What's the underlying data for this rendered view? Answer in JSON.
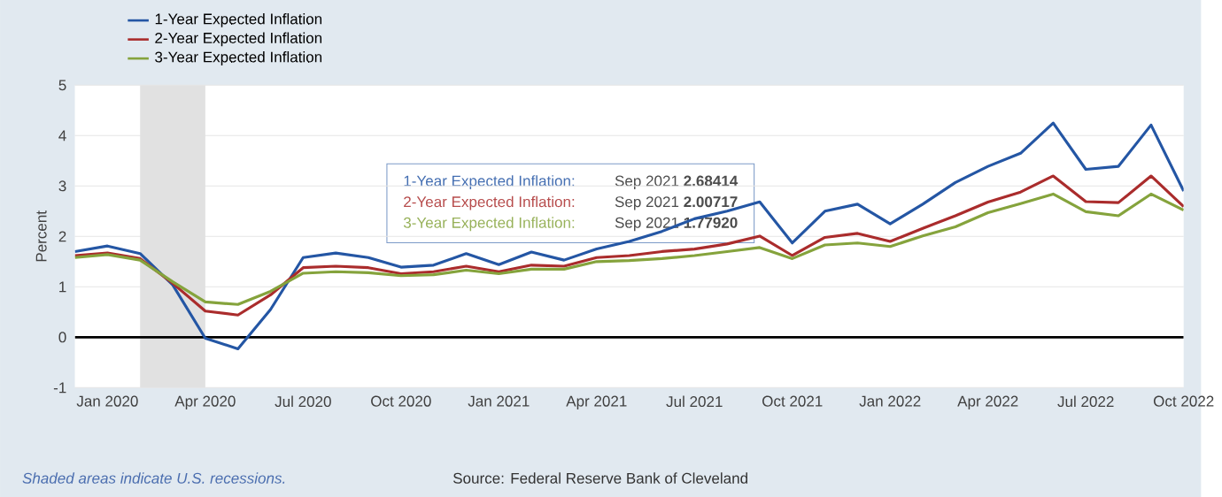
{
  "chart_data": {
    "type": "line",
    "ylabel": "Percent",
    "x": [
      "2019-12",
      "2020-01",
      "2020-02",
      "2020-03",
      "2020-04",
      "2020-05",
      "2020-06",
      "2020-07",
      "2020-08",
      "2020-09",
      "2020-10",
      "2020-11",
      "2020-12",
      "2021-01",
      "2021-02",
      "2021-03",
      "2021-04",
      "2021-05",
      "2021-06",
      "2021-07",
      "2021-08",
      "2021-09",
      "2021-10",
      "2021-11",
      "2021-12",
      "2022-01",
      "2022-02",
      "2022-03",
      "2022-04",
      "2022-05",
      "2022-06",
      "2022-07",
      "2022-08",
      "2022-09",
      "2022-10"
    ],
    "series": [
      {
        "name": "1-Year Expected Inflation",
        "color": "#2456a4",
        "values": [
          1.7,
          1.81,
          1.66,
          1.04,
          -0.02,
          -0.23,
          0.55,
          1.58,
          1.67,
          1.58,
          1.39,
          1.43,
          1.66,
          1.44,
          1.69,
          1.53,
          1.75,
          1.9,
          2.1,
          2.35,
          2.5,
          2.68414,
          1.87,
          2.5,
          2.64,
          2.25,
          2.64,
          3.07,
          3.39,
          3.65,
          4.25,
          3.33,
          3.39,
          4.21,
          2.9
        ]
      },
      {
        "name": "2-Year Expected Inflation",
        "color": "#aa2c2c",
        "values": [
          1.62,
          1.67,
          1.56,
          1.07,
          0.52,
          0.44,
          0.84,
          1.38,
          1.41,
          1.38,
          1.26,
          1.3,
          1.41,
          1.3,
          1.43,
          1.41,
          1.58,
          1.62,
          1.7,
          1.75,
          1.85,
          2.00717,
          1.62,
          1.98,
          2.06,
          1.9,
          2.16,
          2.41,
          2.68,
          2.88,
          3.2,
          2.69,
          2.67,
          3.2,
          2.59
        ]
      },
      {
        "name": "3-Year Expected Inflation",
        "color": "#85a33c",
        "values": [
          1.58,
          1.64,
          1.53,
          1.1,
          0.7,
          0.65,
          0.91,
          1.27,
          1.3,
          1.28,
          1.22,
          1.24,
          1.33,
          1.26,
          1.35,
          1.35,
          1.5,
          1.52,
          1.56,
          1.62,
          1.7,
          1.7792,
          1.56,
          1.83,
          1.87,
          1.8,
          2.01,
          2.19,
          2.47,
          2.65,
          2.84,
          2.49,
          2.41,
          2.84,
          2.52
        ]
      }
    ],
    "xlim": [
      "2019-12",
      "2022-10"
    ],
    "xticks": [
      {
        "value": "2020-01",
        "label": "Jan 2020"
      },
      {
        "value": "2020-04",
        "label": "Apr 2020"
      },
      {
        "value": "2020-07",
        "label": "Jul 2020"
      },
      {
        "value": "2020-10",
        "label": "Oct 2020"
      },
      {
        "value": "2021-01",
        "label": "Jan 2021"
      },
      {
        "value": "2021-04",
        "label": "Apr 2021"
      },
      {
        "value": "2021-07",
        "label": "Jul 2021"
      },
      {
        "value": "2021-10",
        "label": "Oct 2021"
      },
      {
        "value": "2022-01",
        "label": "Jan 2022"
      },
      {
        "value": "2022-04",
        "label": "Apr 2022"
      },
      {
        "value": "2022-07",
        "label": "Jul 2022"
      },
      {
        "value": "2022-10",
        "label": "Oct 2022"
      }
    ],
    "ylim": [
      -1,
      5
    ],
    "yticks": [
      -1,
      0,
      1,
      2,
      3,
      4,
      5
    ],
    "grid": "y",
    "legend": "top left",
    "ref_lines": [
      {
        "axis": "y",
        "value": 0,
        "color": "#000000"
      }
    ],
    "bands": [
      {
        "axis": "x",
        "from": "2020-02",
        "to": "2020-04",
        "color": "#e1e1e1"
      }
    ],
    "annotations": [
      "1-Year Expected Inflation:",
      "Sep 2021 **2.68414**",
      "2-Year Expected Inflation:",
      "Sep 2021 **2.00717**",
      "3-Year Expected Inflation:",
      "Sep 2021 **1.77920**",
      "*Shaded areas indicate U.S. recessions.*",
      "Source: Federal Reserve Bank of Cleveland"
    ]
  }
}
